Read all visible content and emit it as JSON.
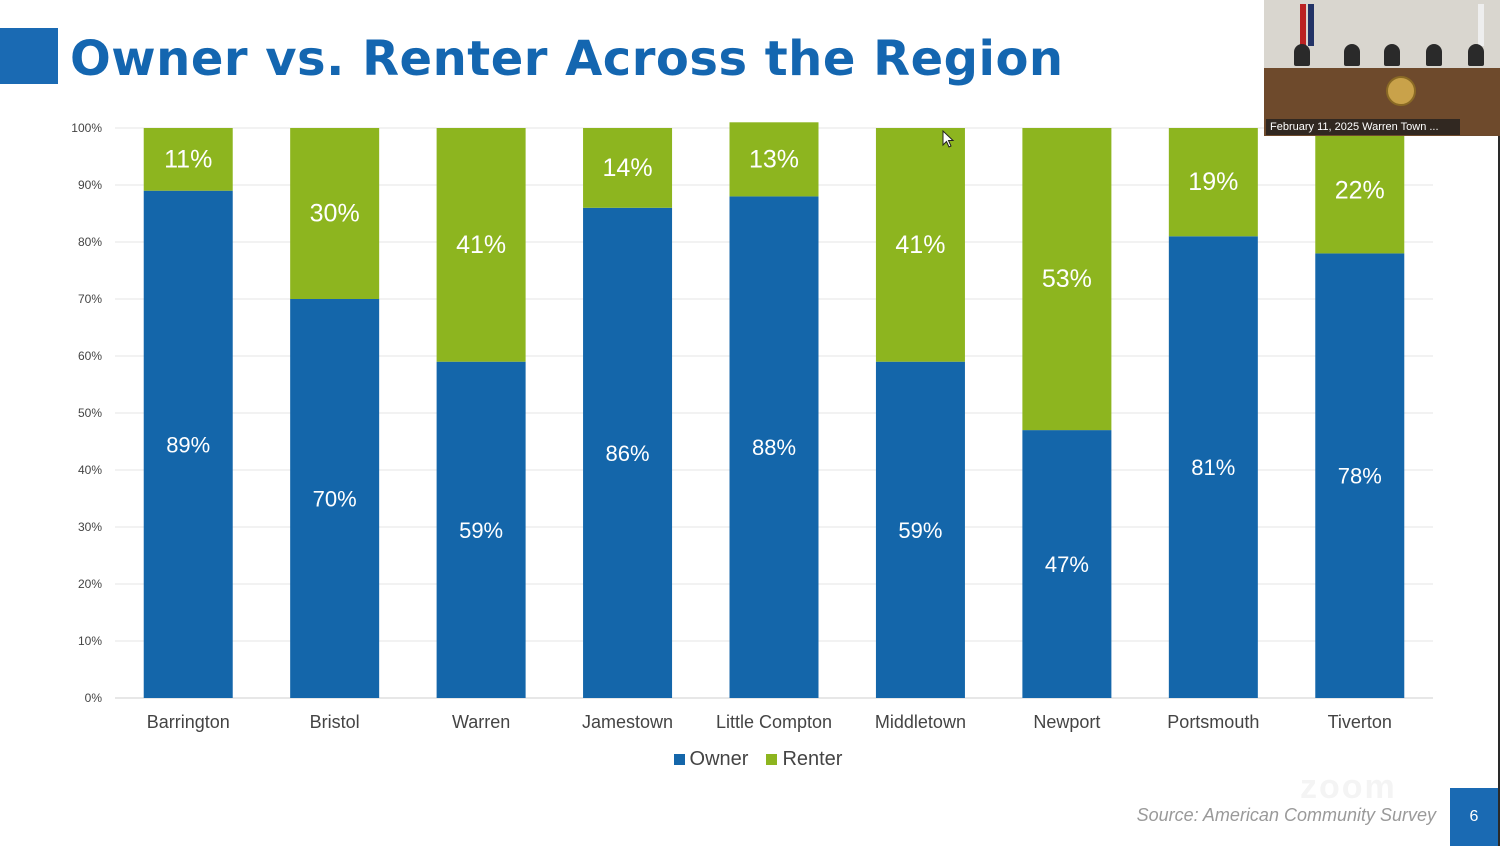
{
  "slide": {
    "title": "Owner vs. Renter Across the Region",
    "source": "Source: American Community Survey",
    "page_number": "6",
    "accent_color": "#1a6ab3"
  },
  "webcam": {
    "caption": "February 11, 2025 Warren Town ..."
  },
  "watermark": "zoom",
  "chart_data": {
    "type": "bar",
    "stacked": true,
    "categories": [
      "Barrington",
      "Bristol",
      "Warren",
      "Jamestown",
      "Little Compton",
      "Middletown",
      "Newport",
      "Portsmouth",
      "Tiverton"
    ],
    "series": [
      {
        "name": "Owner",
        "color": "#1466aa",
        "values": [
          89,
          70,
          59,
          86,
          88,
          59,
          47,
          81,
          78
        ],
        "labels": [
          "89%",
          "70%",
          "59%",
          "86%",
          "88%",
          "59%",
          "47%",
          "81%",
          "78%"
        ]
      },
      {
        "name": "Renter",
        "color": "#8db51f",
        "values": [
          11,
          30,
          41,
          14,
          13,
          41,
          53,
          19,
          22
        ],
        "labels": [
          "11%",
          "30%",
          "41%",
          "14%",
          "13%",
          "41%",
          "53%",
          "19%",
          "22%"
        ]
      }
    ],
    "y_ticks": [
      "0%",
      "10%",
      "20%",
      "30%",
      "40%",
      "50%",
      "60%",
      "70%",
      "80%",
      "90%",
      "100%"
    ],
    "ylim": [
      0,
      100
    ],
    "grid": true,
    "legend": "bottom-center"
  }
}
